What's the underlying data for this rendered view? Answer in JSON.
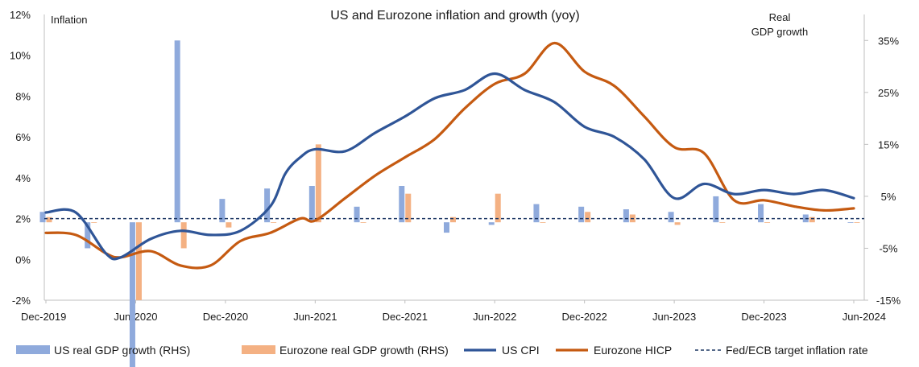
{
  "chart_data": {
    "type": "bar+line",
    "title": "US and Eurozone inflation and growth (yoy)",
    "left_axis_label": "Inflation",
    "right_axis_label_lines": [
      "Real",
      "GDP growth"
    ],
    "left_axis": {
      "min": -2,
      "max": 12,
      "ticks": [
        "-2%",
        "0%",
        "2%",
        "4%",
        "6%",
        "8%",
        "10%",
        "12%"
      ]
    },
    "right_axis": {
      "min": -15,
      "max": 40,
      "ticks": [
        "-15%",
        "-5%",
        "5%",
        "15%",
        "25%",
        "35%"
      ],
      "tick_values": [
        -15,
        -5,
        5,
        15,
        25,
        35
      ]
    },
    "x_axis": {
      "ticks": [
        "Dec-2019",
        "Jun-2020",
        "Dec-2020",
        "Jun-2021",
        "Dec-2021",
        "Jun-2022",
        "Dec-2022",
        "Jun-2023",
        "Dec-2023",
        "Jun-2024"
      ]
    },
    "quarters": [
      "Dec-2019",
      "Mar-2020",
      "Jun-2020",
      "Sep-2020",
      "Dec-2020",
      "Mar-2021",
      "Jun-2021",
      "Sep-2021",
      "Dec-2021",
      "Mar-2022",
      "Jun-2022",
      "Sep-2022",
      "Dec-2022",
      "Mar-2023",
      "Jun-2023",
      "Sep-2023",
      "Dec-2023",
      "Mar-2024",
      "Jun-2024"
    ],
    "bar_series": [
      {
        "name": "US real GDP growth (RHS)",
        "color": "#8faadc",
        "values": [
          2.0,
          -5.0,
          -28.0,
          35.0,
          4.5,
          6.5,
          7.0,
          3.0,
          7.0,
          -2.0,
          -0.5,
          3.5,
          3.0,
          2.5,
          2.0,
          5.0,
          3.5,
          1.5,
          0.0
        ]
      },
      {
        "name": "Eurozone real GDP growth (RHS)",
        "color": "#f4b183",
        "values": [
          1.0,
          0.0,
          -15.0,
          -5.0,
          -1.0,
          0.0,
          15.0,
          0.0,
          5.5,
          1.0,
          5.5,
          0.0,
          2.0,
          1.5,
          -0.5,
          0.0,
          0.0,
          1.0,
          0.0
        ]
      }
    ],
    "line_series": [
      {
        "name": "US CPI",
        "color": "#2f5597",
        "x": [
          "Dec-2019",
          "Feb-2020",
          "Apr-2020",
          "May-2020",
          "Jul-2020",
          "Sep-2020",
          "Nov-2020",
          "Jan-2021",
          "Mar-2021",
          "Apr-2021",
          "May-2021",
          "Jun-2021",
          "Aug-2021",
          "Oct-2021",
          "Dec-2021",
          "Feb-2022",
          "Apr-2022",
          "Jun-2022",
          "Aug-2022",
          "Oct-2022",
          "Dec-2022",
          "Feb-2023",
          "Apr-2023",
          "Jun-2023",
          "Aug-2023",
          "Oct-2023",
          "Dec-2023",
          "Feb-2024",
          "Apr-2024",
          "Jun-2024"
        ],
        "values": [
          2.3,
          2.3,
          0.3,
          0.1,
          1.0,
          1.4,
          1.2,
          1.4,
          2.6,
          4.2,
          5.0,
          5.4,
          5.3,
          6.2,
          7.0,
          7.9,
          8.3,
          9.1,
          8.3,
          7.7,
          6.5,
          6.0,
          4.9,
          3.0,
          3.7,
          3.2,
          3.4,
          3.2,
          3.4,
          3.0
        ]
      },
      {
        "name": "Eurozone HICP",
        "color": "#c55a11",
        "x": [
          "Dec-2019",
          "Feb-2020",
          "Apr-2020",
          "May-2020",
          "Jul-2020",
          "Sep-2020",
          "Nov-2020",
          "Jan-2021",
          "Mar-2021",
          "May-2021",
          "Jun-2021",
          "Aug-2021",
          "Oct-2021",
          "Dec-2021",
          "Feb-2022",
          "Apr-2022",
          "Jun-2022",
          "Aug-2022",
          "Oct-2022",
          "Dec-2022",
          "Feb-2023",
          "Apr-2023",
          "Jun-2023",
          "Aug-2023",
          "Oct-2023",
          "Dec-2023",
          "Feb-2024",
          "Apr-2024",
          "Jun-2024"
        ],
        "values": [
          1.3,
          1.2,
          0.3,
          0.1,
          0.4,
          -0.3,
          -0.3,
          0.9,
          1.3,
          2.0,
          1.9,
          3.0,
          4.1,
          5.0,
          5.9,
          7.4,
          8.6,
          9.1,
          10.6,
          9.2,
          8.5,
          7.0,
          5.5,
          5.2,
          2.9,
          2.9,
          2.6,
          2.4,
          2.5
        ]
      },
      {
        "name": "Fed/ECB target inflation rate",
        "color": "#1f3864",
        "dashed": true,
        "value": 2.0
      }
    ],
    "legend_position": "bottom"
  }
}
